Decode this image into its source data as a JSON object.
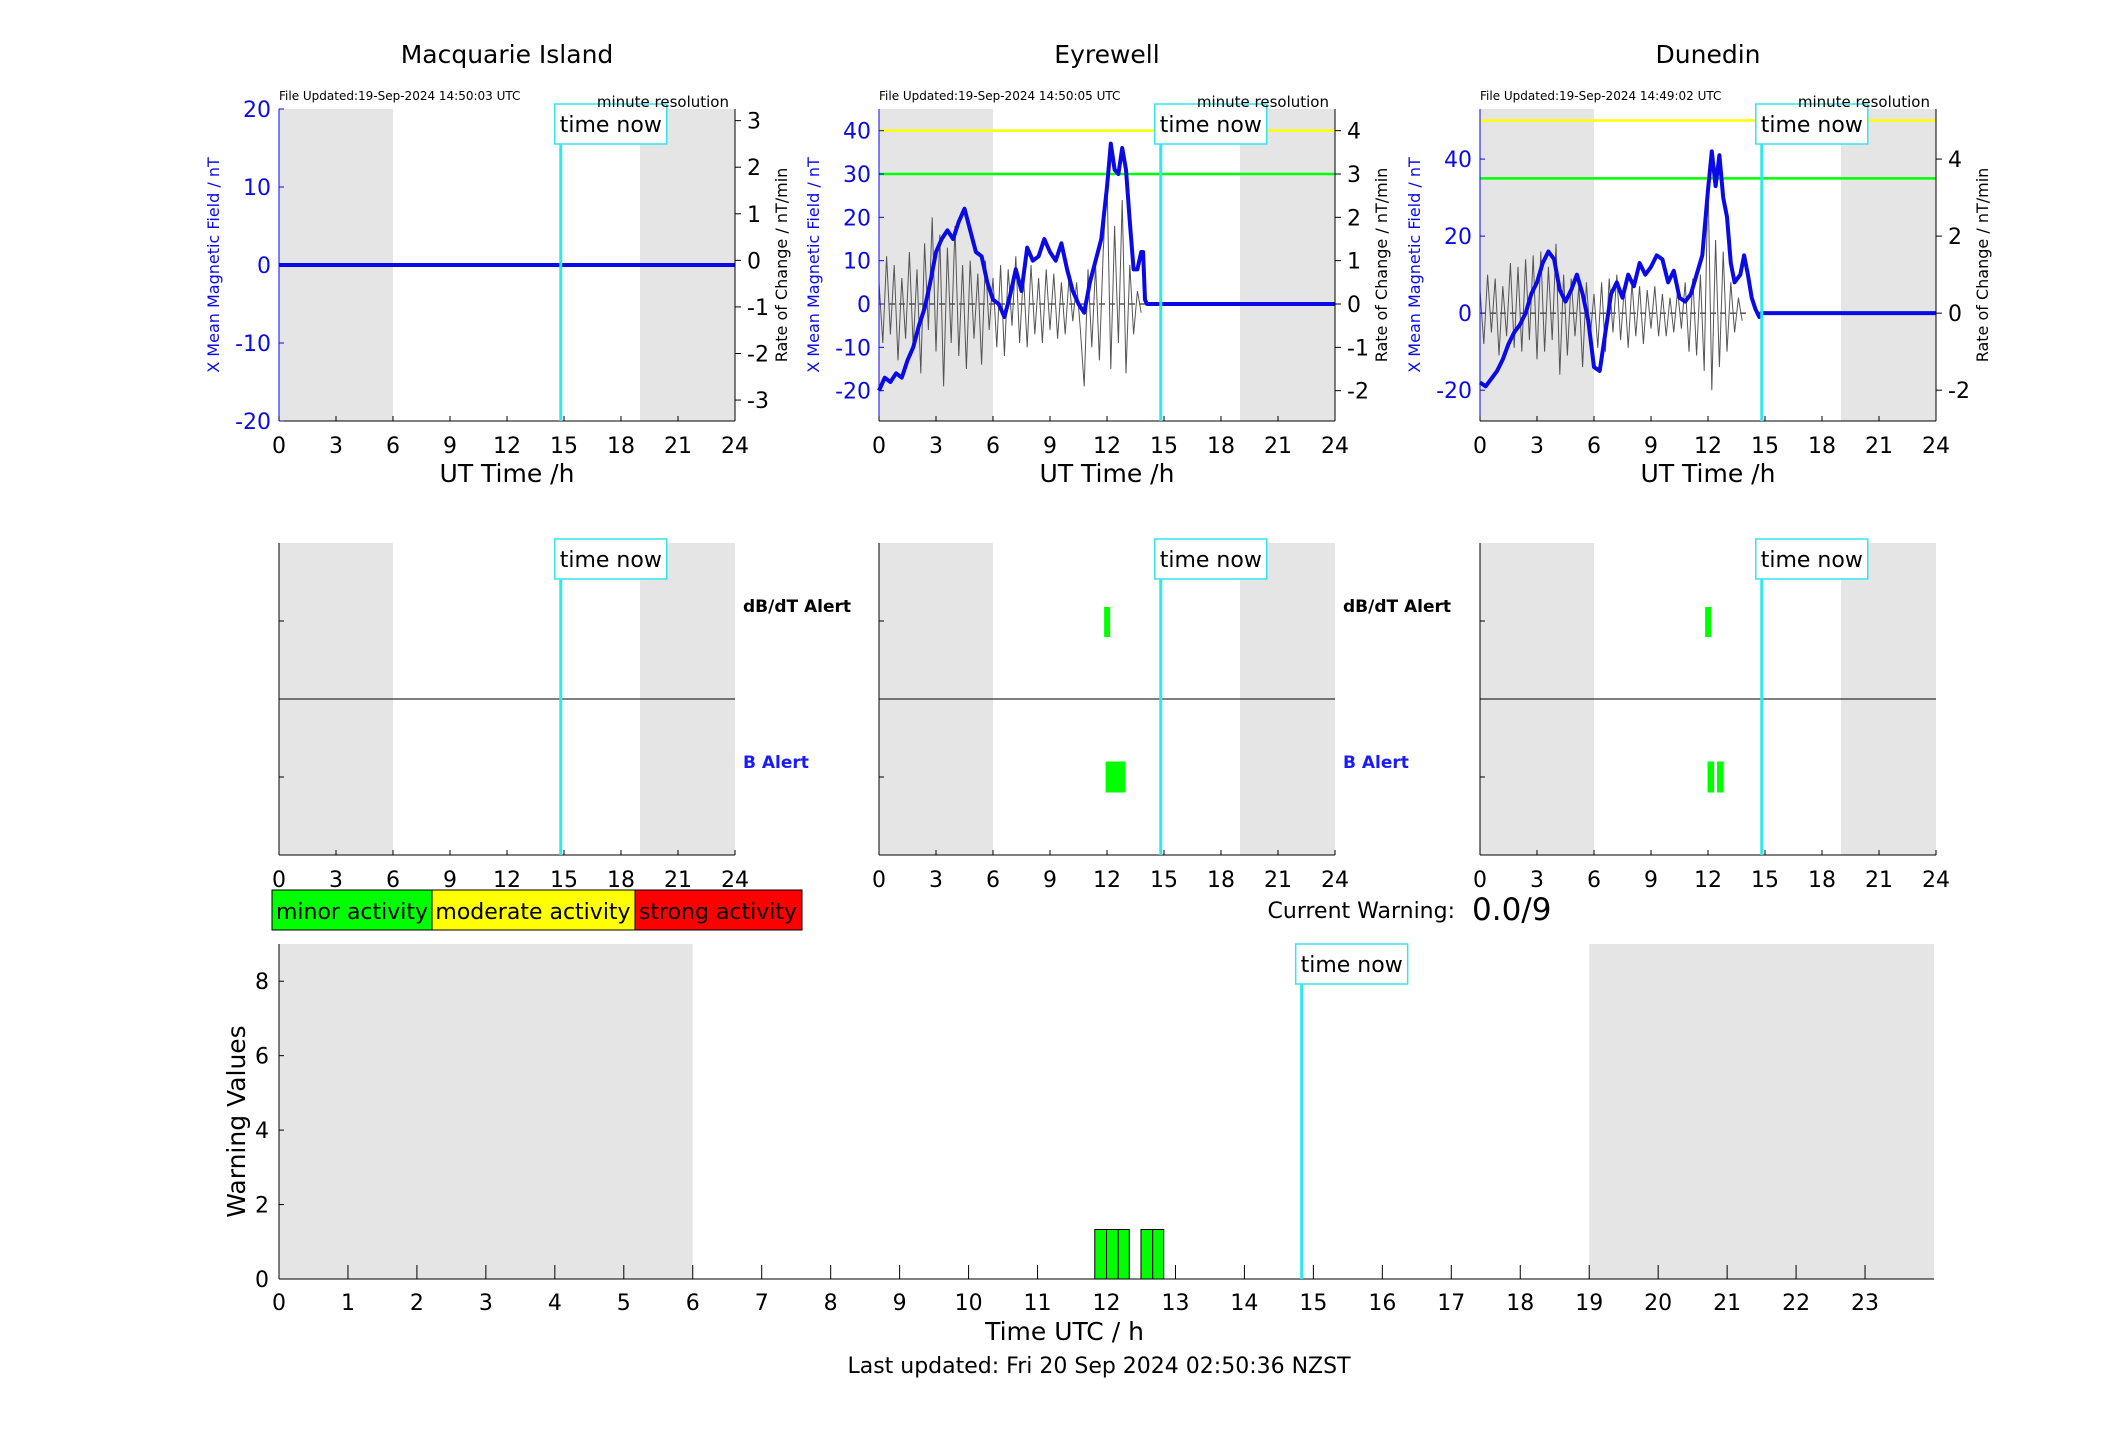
{
  "colors": {
    "shade": "#e5e5e5",
    "time_now": "#33e6ea",
    "mag_line": "#0a0ae6",
    "rate_line": "#555555",
    "minor": "#00ff00",
    "moderate": "#ffff00",
    "strong": "#ff0000",
    "b_alert_label": "#1a1aff"
  },
  "common": {
    "x_ticks": [
      0,
      3,
      6,
      9,
      12,
      15,
      18,
      21,
      24
    ],
    "xlim": [
      0,
      24
    ],
    "x_label": "UT Time /h",
    "time_now_label": "time now",
    "time_now_hour": 14.83,
    "night_shading_hours": [
      [
        0,
        6
      ],
      [
        19,
        24
      ]
    ],
    "resolution_note": "minute resolution",
    "left_axis_label": "X Mean Magnetic Field / nT",
    "right_axis_label": "Rate of Change / nT/min",
    "dbdt_alert_label": "dB/dT Alert",
    "b_alert_label": "B Alert"
  },
  "stations": [
    {
      "name": "Macquarie Island",
      "file_updated": "File Updated:19-Sep-2024 14:50:03 UTC",
      "mag_ylim": [
        -20,
        20
      ],
      "mag_ticks": [
        -20,
        -10,
        0,
        10,
        20
      ],
      "rate_ylim": [
        -3.45,
        3.25
      ],
      "rate_ticks": [
        -3,
        -2,
        -1,
        0,
        1,
        2,
        3
      ],
      "thresholds": [],
      "mag_series": [
        [
          0,
          0
        ],
        [
          24,
          0
        ]
      ],
      "rate_series": [],
      "dbdt_alerts": [],
      "b_alerts": []
    },
    {
      "name": "Eyrewell",
      "file_updated": "File Updated:19-Sep-2024 14:50:05 UTC",
      "mag_ylim": [
        -27,
        45
      ],
      "mag_ticks": [
        -20,
        -10,
        0,
        10,
        20,
        30,
        40
      ],
      "rate_ylim": [
        -2.7,
        4.5
      ],
      "rate_ticks": [
        -2,
        -1,
        0,
        1,
        2,
        3,
        4
      ],
      "thresholds": [
        {
          "color": "yellow",
          "value": 40
        },
        {
          "color": "green",
          "value": 30
        }
      ],
      "mag_series": [
        [
          0,
          -20
        ],
        [
          0.3,
          -17
        ],
        [
          0.6,
          -18
        ],
        [
          0.9,
          -16
        ],
        [
          1.2,
          -17
        ],
        [
          1.5,
          -13
        ],
        [
          1.8,
          -10
        ],
        [
          2.1,
          -5
        ],
        [
          2.4,
          -1
        ],
        [
          2.7,
          5
        ],
        [
          3.0,
          12
        ],
        [
          3.3,
          15
        ],
        [
          3.6,
          17
        ],
        [
          3.9,
          15
        ],
        [
          4.2,
          19
        ],
        [
          4.5,
          22
        ],
        [
          4.8,
          17
        ],
        [
          5.1,
          12
        ],
        [
          5.4,
          11
        ],
        [
          5.7,
          5
        ],
        [
          6.0,
          1
        ],
        [
          6.3,
          0
        ],
        [
          6.6,
          -3
        ],
        [
          6.9,
          2
        ],
        [
          7.2,
          8
        ],
        [
          7.5,
          3
        ],
        [
          7.8,
          13
        ],
        [
          8.1,
          10
        ],
        [
          8.4,
          11
        ],
        [
          8.7,
          15
        ],
        [
          9.0,
          12
        ],
        [
          9.3,
          10
        ],
        [
          9.6,
          14
        ],
        [
          9.9,
          8
        ],
        [
          10.2,
          3
        ],
        [
          10.5,
          0
        ],
        [
          10.8,
          -2
        ],
        [
          11.1,
          5
        ],
        [
          11.4,
          10
        ],
        [
          11.7,
          15
        ],
        [
          12.0,
          27
        ],
        [
          12.2,
          37
        ],
        [
          12.4,
          31
        ],
        [
          12.6,
          30
        ],
        [
          12.8,
          36
        ],
        [
          13.0,
          31
        ],
        [
          13.2,
          19
        ],
        [
          13.4,
          8
        ],
        [
          13.6,
          8
        ],
        [
          13.8,
          12
        ],
        [
          13.9,
          12
        ],
        [
          14.0,
          1
        ],
        [
          14.1,
          0
        ],
        [
          24,
          0
        ]
      ],
      "rate_series": [
        [
          0,
          0.5
        ],
        [
          0.2,
          -0.9
        ],
        [
          0.4,
          1.1
        ],
        [
          0.6,
          -0.7
        ],
        [
          0.8,
          0.9
        ],
        [
          1.0,
          -1.3
        ],
        [
          1.2,
          0.6
        ],
        [
          1.4,
          -0.8
        ],
        [
          1.6,
          1.2
        ],
        [
          1.8,
          -1.0
        ],
        [
          2.0,
          0.8
        ],
        [
          2.2,
          -1.6
        ],
        [
          2.4,
          1.4
        ],
        [
          2.6,
          -0.6
        ],
        [
          2.8,
          2.0
        ],
        [
          3.0,
          -1.1
        ],
        [
          3.2,
          1.6
        ],
        [
          3.4,
          -1.9
        ],
        [
          3.6,
          1.3
        ],
        [
          3.8,
          -0.9
        ],
        [
          4.0,
          1.8
        ],
        [
          4.2,
          -1.2
        ],
        [
          4.4,
          0.9
        ],
        [
          4.6,
          -1.5
        ],
        [
          4.8,
          1.0
        ],
        [
          5.0,
          -0.8
        ],
        [
          5.2,
          0.7
        ],
        [
          5.4,
          -1.4
        ],
        [
          5.6,
          1.0
        ],
        [
          5.8,
          -0.6
        ],
        [
          6.0,
          0.6
        ],
        [
          6.2,
          -1.0
        ],
        [
          6.4,
          0.9
        ],
        [
          6.6,
          -1.2
        ],
        [
          6.8,
          0.8
        ],
        [
          7.0,
          -0.5
        ],
        [
          7.2,
          1.1
        ],
        [
          7.4,
          -0.9
        ],
        [
          7.6,
          0.7
        ],
        [
          7.8,
          -1.0
        ],
        [
          8.0,
          0.9
        ],
        [
          8.2,
          -0.7
        ],
        [
          8.4,
          0.6
        ],
        [
          8.6,
          -0.9
        ],
        [
          8.8,
          0.8
        ],
        [
          9.0,
          -0.6
        ],
        [
          9.2,
          0.7
        ],
        [
          9.4,
          -0.8
        ],
        [
          9.6,
          0.5
        ],
        [
          9.8,
          -0.7
        ],
        [
          10.0,
          0.6
        ],
        [
          10.2,
          -0.4
        ],
        [
          10.4,
          0.5
        ],
        [
          10.6,
          -0.6
        ],
        [
          10.8,
          -1.9
        ],
        [
          11.0,
          0.8
        ],
        [
          11.2,
          -1.0
        ],
        [
          11.4,
          0.9
        ],
        [
          11.6,
          -1.3
        ],
        [
          11.8,
          1.2
        ],
        [
          12.0,
          2.9
        ],
        [
          12.2,
          -1.5
        ],
        [
          12.4,
          1.8
        ],
        [
          12.6,
          -0.9
        ],
        [
          12.8,
          2.4
        ],
        [
          13.0,
          -1.6
        ],
        [
          13.2,
          0.9
        ],
        [
          13.4,
          -0.7
        ],
        [
          13.6,
          0.3
        ],
        [
          13.8,
          -0.2
        ]
      ],
      "dbdt_alerts": [
        [
          11.85,
          12.15
        ]
      ],
      "b_alerts": [
        [
          11.9,
          13.0
        ]
      ]
    },
    {
      "name": "Dunedin",
      "file_updated": "File Updated:19-Sep-2024 14:49:02 UTC",
      "mag_ylim": [
        -28,
        53
      ],
      "mag_ticks": [
        -20,
        0,
        20,
        40
      ],
      "rate_ylim": [
        -2.8,
        5.3
      ],
      "rate_ticks": [
        -2,
        0,
        2,
        4
      ],
      "thresholds": [
        {
          "color": "yellow",
          "value": 50
        },
        {
          "color": "green",
          "value": 35
        }
      ],
      "mag_series": [
        [
          0,
          -18
        ],
        [
          0.3,
          -19
        ],
        [
          0.6,
          -17
        ],
        [
          0.9,
          -15
        ],
        [
          1.2,
          -12
        ],
        [
          1.5,
          -8
        ],
        [
          1.8,
          -5
        ],
        [
          2.1,
          -3
        ],
        [
          2.4,
          0
        ],
        [
          2.7,
          5
        ],
        [
          3.0,
          8
        ],
        [
          3.3,
          13
        ],
        [
          3.6,
          16
        ],
        [
          3.9,
          14
        ],
        [
          4.2,
          6
        ],
        [
          4.5,
          3
        ],
        [
          4.8,
          6
        ],
        [
          5.1,
          10
        ],
        [
          5.4,
          5
        ],
        [
          5.7,
          -2
        ],
        [
          6.0,
          -14
        ],
        [
          6.3,
          -15
        ],
        [
          6.6,
          -5
        ],
        [
          6.9,
          5
        ],
        [
          7.2,
          8
        ],
        [
          7.5,
          4
        ],
        [
          7.8,
          10
        ],
        [
          8.1,
          7
        ],
        [
          8.4,
          13
        ],
        [
          8.7,
          10
        ],
        [
          9.0,
          12
        ],
        [
          9.3,
          15
        ],
        [
          9.6,
          14
        ],
        [
          9.9,
          8
        ],
        [
          10.2,
          11
        ],
        [
          10.5,
          4
        ],
        [
          10.8,
          3
        ],
        [
          11.1,
          5
        ],
        [
          11.4,
          10
        ],
        [
          11.7,
          15
        ],
        [
          12.0,
          32
        ],
        [
          12.2,
          42
        ],
        [
          12.4,
          33
        ],
        [
          12.6,
          41
        ],
        [
          12.8,
          30
        ],
        [
          13.0,
          25
        ],
        [
          13.2,
          13
        ],
        [
          13.4,
          8
        ],
        [
          13.7,
          10
        ],
        [
          13.9,
          15
        ],
        [
          14.1,
          10
        ],
        [
          14.3,
          4
        ],
        [
          14.5,
          1
        ],
        [
          14.7,
          -1
        ],
        [
          14.8,
          0
        ],
        [
          24,
          0
        ]
      ],
      "rate_series": [
        [
          0,
          0.6
        ],
        [
          0.2,
          -0.8
        ],
        [
          0.4,
          1.0
        ],
        [
          0.6,
          -0.5
        ],
        [
          0.8,
          0.9
        ],
        [
          1.0,
          -1.1
        ],
        [
          1.2,
          0.7
        ],
        [
          1.4,
          -0.6
        ],
        [
          1.6,
          1.3
        ],
        [
          1.8,
          -0.9
        ],
        [
          2.0,
          1.2
        ],
        [
          2.2,
          -1.0
        ],
        [
          2.4,
          1.4
        ],
        [
          2.6,
          -0.7
        ],
        [
          2.8,
          1.5
        ],
        [
          3.0,
          -1.2
        ],
        [
          3.2,
          1.6
        ],
        [
          3.4,
          -1.0
        ],
        [
          3.6,
          1.2
        ],
        [
          3.8,
          -0.7
        ],
        [
          4.0,
          1.8
        ],
        [
          4.2,
          -1.6
        ],
        [
          4.4,
          1.0
        ],
        [
          4.6,
          -1.1
        ],
        [
          4.8,
          0.9
        ],
        [
          5.0,
          -0.6
        ],
        [
          5.2,
          0.7
        ],
        [
          5.4,
          -1.4
        ],
        [
          5.6,
          0.8
        ],
        [
          5.8,
          -0.6
        ],
        [
          6.0,
          0.5
        ],
        [
          6.2,
          -0.9
        ],
        [
          6.4,
          0.8
        ],
        [
          6.6,
          -1.0
        ],
        [
          6.8,
          0.9
        ],
        [
          7.0,
          -0.5
        ],
        [
          7.2,
          1.0
        ],
        [
          7.4,
          -0.7
        ],
        [
          7.6,
          0.7
        ],
        [
          7.8,
          -0.9
        ],
        [
          8.0,
          0.8
        ],
        [
          8.2,
          -0.6
        ],
        [
          8.4,
          0.7
        ],
        [
          8.6,
          -0.8
        ],
        [
          8.8,
          0.6
        ],
        [
          9.0,
          -0.4
        ],
        [
          9.2,
          0.7
        ],
        [
          9.4,
          -0.6
        ],
        [
          9.6,
          0.5
        ],
        [
          9.8,
          -0.6
        ],
        [
          10.0,
          0.4
        ],
        [
          10.2,
          -0.5
        ],
        [
          10.4,
          0.6
        ],
        [
          10.6,
          -0.4
        ],
        [
          10.8,
          0.8
        ],
        [
          11.0,
          -1.0
        ],
        [
          11.2,
          0.9
        ],
        [
          11.4,
          -1.1
        ],
        [
          11.6,
          1.0
        ],
        [
          11.8,
          -1.5
        ],
        [
          12.0,
          3.5
        ],
        [
          12.2,
          -2.0
        ],
        [
          12.4,
          1.9
        ],
        [
          12.6,
          -1.4
        ],
        [
          12.8,
          1.6
        ],
        [
          13.0,
          -1.0
        ],
        [
          13.2,
          0.8
        ],
        [
          13.4,
          -0.5
        ],
        [
          13.6,
          0.4
        ],
        [
          13.8,
          -0.2
        ]
      ],
      "dbdt_alerts": [
        [
          11.85,
          12.15
        ]
      ],
      "b_alerts": [
        [
          11.95,
          12.35
        ],
        [
          12.45,
          12.85
        ]
      ]
    }
  ],
  "legend": [
    {
      "label": "minor activity",
      "color": "#00ff00"
    },
    {
      "label": "moderate activity",
      "color": "#ffff00"
    },
    {
      "label": "strong activity",
      "color": "#ff0000"
    }
  ],
  "current_warning_label": "Current Warning:",
  "current_warning_value": "0.0/9",
  "chart_data": {
    "type": "bar",
    "ylabel": "Warning Values",
    "xlabel": "Time UTC / h",
    "xlim": [
      0,
      24
    ],
    "ylim": [
      0,
      9
    ],
    "x_ticks": [
      0,
      1,
      2,
      3,
      4,
      5,
      6,
      7,
      8,
      9,
      10,
      11,
      12,
      13,
      14,
      15,
      16,
      17,
      18,
      19,
      20,
      21,
      22,
      23
    ],
    "y_ticks": [
      0,
      2,
      4,
      6,
      8
    ],
    "time_now_hour": 14.83,
    "night_shading_hours": [
      [
        0,
        6
      ],
      [
        19,
        24
      ]
    ],
    "bars": [
      {
        "x_start": 11.83,
        "x_end": 12.0,
        "value": 1.33
      },
      {
        "x_start": 12.0,
        "x_end": 12.17,
        "value": 1.33
      },
      {
        "x_start": 12.17,
        "x_end": 12.33,
        "value": 1.33
      },
      {
        "x_start": 12.5,
        "x_end": 12.67,
        "value": 1.33
      },
      {
        "x_start": 12.67,
        "x_end": 12.83,
        "value": 1.33
      }
    ]
  },
  "footer": "Last updated: Fri 20 Sep 2024 02:50:36 NZST"
}
